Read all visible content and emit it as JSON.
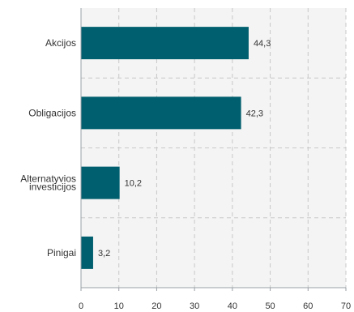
{
  "chart_data": {
    "type": "bar",
    "orientation": "horizontal",
    "categories": [
      [
        "Akcijos"
      ],
      [
        "Obligacijos"
      ],
      [
        "Alternatyvios",
        "investicijos"
      ],
      [
        "Pinigai"
      ]
    ],
    "values": [
      44.3,
      42.3,
      10.2,
      3.2
    ],
    "value_labels": [
      "44,3",
      "42,3",
      "10,2",
      "3,2"
    ],
    "x_ticks": [
      "0",
      "10",
      "20",
      "30",
      "40",
      "50",
      "60",
      "70"
    ],
    "xlim": [
      0,
      70
    ],
    "grid": true,
    "colors": {
      "bar": "#005f6e",
      "plot_bg": "#f4f4f4",
      "grid": "#c8c8c8",
      "axis": "#9aa0a6"
    }
  }
}
